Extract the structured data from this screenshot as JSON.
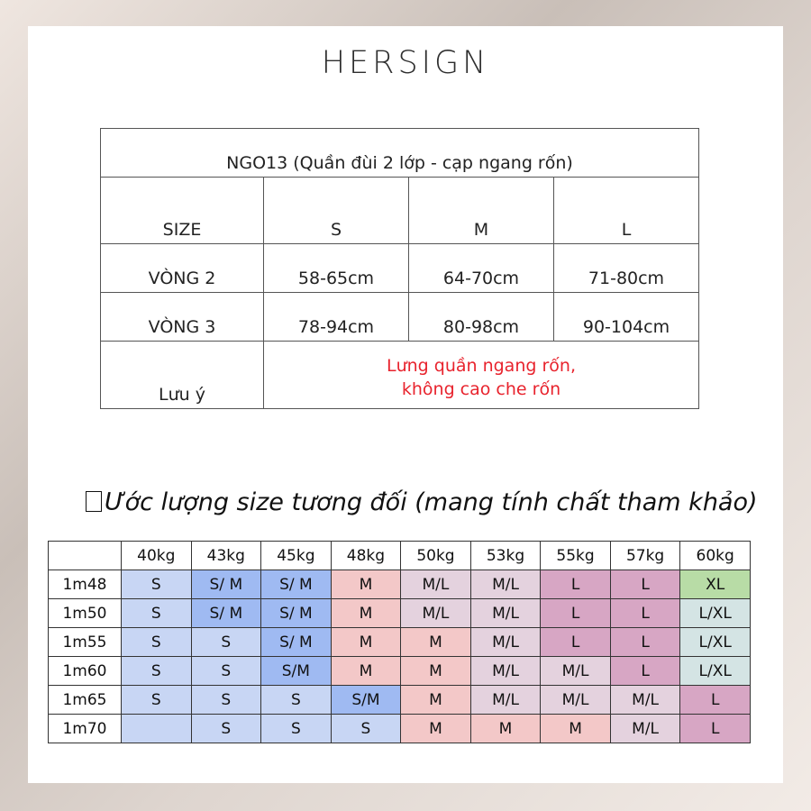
{
  "brand": "HERSIGN",
  "size_table": {
    "title": "NGO13 (Quần đùi 2 lớp - cạp ngang rốn)",
    "header": [
      "SIZE",
      "S",
      "M",
      "L"
    ],
    "rows": [
      {
        "label": "VÒNG 2",
        "values": [
          "58-65cm",
          "64-70cm",
          "71-80cm"
        ]
      },
      {
        "label": "VÒNG 3",
        "values": [
          "78-94cm",
          "80-98cm",
          "90-104cm"
        ]
      }
    ],
    "note_label": "Lưu ý",
    "note_line1": "Lưng quần ngang rốn,",
    "note_line2": "không cao che rốn",
    "note_color": "#e8232d"
  },
  "estimate": {
    "heading": "Ước lượng size tương đối (mang tính chất tham khảo)",
    "weights": [
      "40kg",
      "43kg",
      "45kg",
      "48kg",
      "50kg",
      "53kg",
      "55kg",
      "57kg",
      "60kg"
    ],
    "rows": [
      {
        "height": "1m48",
        "cells": [
          "S",
          "S/ M",
          "S/ M",
          "M",
          "M/L",
          "M/L",
          "L",
          "L",
          "XL"
        ]
      },
      {
        "height": "1m50",
        "cells": [
          "S",
          "S/ M",
          "S/ M",
          "M",
          "M/L",
          "M/L",
          "L",
          "L",
          "L/XL"
        ]
      },
      {
        "height": "1m55",
        "cells": [
          "S",
          "S",
          "S/ M",
          "M",
          "M",
          "M/L",
          "L",
          "L",
          "L/XL"
        ]
      },
      {
        "height": "1m60",
        "cells": [
          "S",
          "S",
          "S/M",
          "M",
          "M",
          "M/L",
          "M/L",
          "L",
          "L/XL"
        ]
      },
      {
        "height": "1m65",
        "cells": [
          "S",
          "S",
          "S",
          "S/M",
          "M",
          "M/L",
          "M/L",
          "M/L",
          "L"
        ]
      },
      {
        "height": "1m70",
        "cells": [
          "",
          "S",
          "S",
          "S",
          "M",
          "M",
          "M",
          "M/L",
          "L"
        ]
      }
    ],
    "colors": {
      "light_blue": "#c8d6f4",
      "blue": "#9fbaf2",
      "pink": "#f3c8c8",
      "light_purple": "#e4d2de",
      "purple": "#d7a6c4",
      "green": "#b8dca6",
      "teal": "#d4e4e4"
    }
  }
}
